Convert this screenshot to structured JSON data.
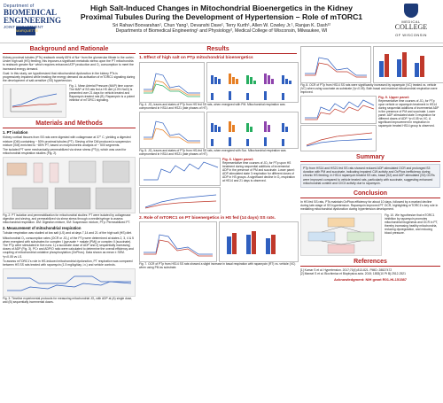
{
  "header": {
    "title_line1": "High Salt-Induced Changes in Mitochondrial Bioenergetics in the Kidney",
    "title_line2": "Proximal Tubules During the Development of Hypertension – Role of mTORC1",
    "authors": "Sri Rahavi Boovarahan¹, Chun Yang¹, Devanshi Dave¹, Terry Kurth¹, Allen W. Cowley Jr.¹, Ranjan K. Dash¹²",
    "departments": "Departments of Biomedical Engineering¹ and Physiology², Medical College of Wisconsin, Milwaukee, WI",
    "left_logo": {
      "top": "Department of",
      "name": "BIOMEDICAL ENGINEERING",
      "sub": "JOINT DEPARTMENT",
      "badge": "MARQUETTE"
    },
    "right_logo": {
      "top": "MEDICAL",
      "mid": "COLLEGE",
      "bottom": "OF WISCONSIN"
    }
  },
  "background": {
    "heading": "Background and Rationale",
    "bullets": [
      "Kidney proximal tubules (PTs) reabsorb nearly 65% of Na⁺ from the glomerular filtrate in the cortex. Under high salt (HS) feeding, this imposes a significant metabolic stress upon the PT mitochondria to reabsorb greater Na⁺ which requires enhanced ATP production and O₂ consumption to meet the increased energy demand.",
      "Goal: In this study, we hypothesized that mitochondrial dysfunction in the kidney PTs is progressively impaired while treating the energy demand via activation of mTORC1 signaling during the development of salt-sensitive (SS) hypertension."
    ],
    "fig1_caption": "Fig. 1. Mean Arterial Pressure (MAP) time course: The MAP of SS rats fed a HS diet (4.0% NaCl) is presented over 21 days for vehicle-treated and Rapamycin-treated rats (B). Rapamycin is a potent inhibitor of mTORC1 signaling."
  },
  "methods": {
    "heading": "Materials and Methods",
    "sub1": "1. PT isolation",
    "bullets1": [
      "Kidney cortical tissues from SS rats were digested with collagenase at 37° C, yielding a digested mixture (DM) containing ~ 50% proximal tubules (PT). Sieving of the DM produced a suspension mixture (SM) enriched to ~85% PT, based on morphometric analysis of ~ 500 segments.",
      "The isolated PT were mechanically permeabilized via shear stress (PTp), which was used for mitochondrial respiration studies (Fig. 2)."
    ],
    "fig2_caption": "Fig. 2: PT isolation and permeabilization for mitochondrial studies: PT were isolated by collagenase digestion and sieving, and permeabilized via shear stress through a needle/syringe to assess mitochondrial respiration. DM: Digestion mixture, SM: Suspension mixture, PTp: Permeabilized PT.",
    "sub2": "2. Measurement of mitochondrial respiration",
    "bullets2": [
      "Tubular respiration was studied at low salt (LS) and at days 7,14 and 21 of the high salt (HS) diet.",
      "Mitochondrial O₂ consumption rates (OCR or JO₂) of the PTp were determined at states 2, 3, 4 & 5 when energized with substrates for complex I (pyruvate + malate (PM)) or complex II (succinate). The PTp were stimulated in five runs: 1) a succinate dose of ADP and 2) sequentially increasing doses of ADP (Fig. 3). PCr and ADP/O ratio were calculated to determine the overall efficiency and coupling of mitochondrial oxidative phosphorylation (OxPhos). Data shown as mean ± SEM. *p<0.05 vs LS.",
      "To assess mTORC1's role in HS-induced mitochondrial dysfunction, PT respiration was compared between HS SS rats treated with rapamycin (1.5 mg/kg/day, i.v.) and vehicle controls."
    ],
    "fig3_caption": "Fig. 3: Timeline experimental protocols for measuring mitochondrial JO₂ with ADP at (A) single dose, and (B) sequentially incremental doses."
  },
  "results": {
    "heading": "Results",
    "effect_heading": "1. Effect of high salt on PTp mitochondrial bioenergetics",
    "fig4_caption": "Fig. 4. JO₂ traces and states of PTp from HS fed SS rats, when energized with PM. Mitochondrial respiration was compromised in HS14 and HS21 (late phases of HT).",
    "fig5_caption": "Fig. 5. JO₂ traces and states of PTp from HS-fed SS rats, when energized with Suc. Mitochondrial respiration was compromised in HS14 and HS21 (late phases of HT).",
    "fig6_heading": "Fig. 6. Upper panel:",
    "fig6_caption": "Representative time courses of JO₂ for PTp upon HS treatment during sequential additions of incremental ADP in the presence of PM and succinate. Lower panel: ADP-stimulated state 3 respiration for different doses of ADP in HS groups. A significant decline in O₂ respiration at HS14 and 21 days is observed.",
    "role_heading": "2. Role of mTORC1 on PT bioenergetics in HS fed (14 days) SS rats.",
    "fig7_caption": "Fig. 7. OCR of PTp from HS14 SS rats showed a slight increase in basal respiration with rapamycin (RT) vs. vehicle (VC) when using PM as substrate.",
    "fig8_caption": "Fig. 8. OCR of PTp from HS14 SS rats were significantly increased by rapamycin (VC) treated vs. vehicle (VC) when using succinate as substrate (*p<0.05). Both basal and maximal mitochondrial respiration were improved.",
    "fig9_heading": "Fig. 9. Upper panel:",
    "fig9_caption": "Representative time courses of JO₂ for PTp upon vehicle or rapamycin treatment in HS14 during sequential additions of incremental ADP in the presence of PM and succinate. Lower panel: ADP-stimulated state 3 respiration for different doses of ADP. *p<0.05 vs VC. A significant improvement in respiration in rapamycin treated HS14 group is observed."
  },
  "summary": {
    "heading": "Summary",
    "text": "PTp from HS14 and HS21 fed SS rats showed reduced ADP-stimulated OCR and prolonged S3 duration with PM and succinate, indicating impaired CI/II activity and OxPhos inefficiency during chronic HS feeding. In HS14 rapamycin treated SS rats, basal (S2) and ADP-stimulated (S3) OCRs were improved compared to vehicle treated rats, particularly with succinate, suggesting enhanced mitochondrial content and CI/CII activity due to rapamycin."
  },
  "conclusion": {
    "heading": "Conclusion",
    "text": "In HS fed SS rats, PTs maintain OxPhos efficiency for about 10 days, followed by a marked decline during late-stage of SS hypertension. Rapamycin improved PT OCR, highlighting mTORC1's key role in mediating mitochondrial dysfunction during hypertension development.",
    "fig10_caption": "Fig. 10. We hypothesize that mTORC1 inhibition by rapamycin promotes mitochondrial biogenesis and OCR in PT, thereby increasing healthy mitochondria, reducing dysregulation, and reducing blood pressure."
  },
  "references": {
    "heading": "References",
    "items": [
      "[1] Kumar S et al. Hypertension. 2017;70(4):813-821. PMID: 28827472",
      "[2] Mansel S et al. Biochimica et Biophysica acta. 2015; 1853(10 Pt B):2512-2521"
    ],
    "ack": "Acknowledgment: NIH grant R01-HL151587"
  },
  "colors": {
    "accent": "#b22020",
    "navy": "#1d3b78",
    "panel": "#f3f3f3"
  }
}
